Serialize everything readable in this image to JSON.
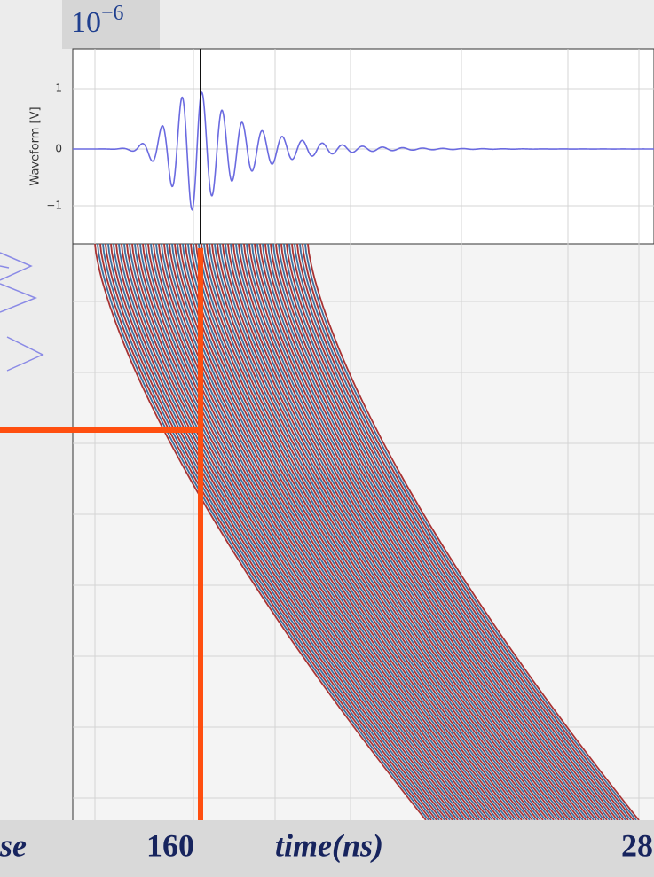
{
  "scale_label": {
    "base": "10",
    "exponent": "−6"
  },
  "waveform_panel": {
    "y_axis_label": "Waveform [V]",
    "y_tick_labels": [
      "1",
      "0",
      "−1"
    ]
  },
  "bottom_bar": {
    "labels": [
      "se",
      "160",
      "time(ns)",
      "28"
    ]
  }
}
